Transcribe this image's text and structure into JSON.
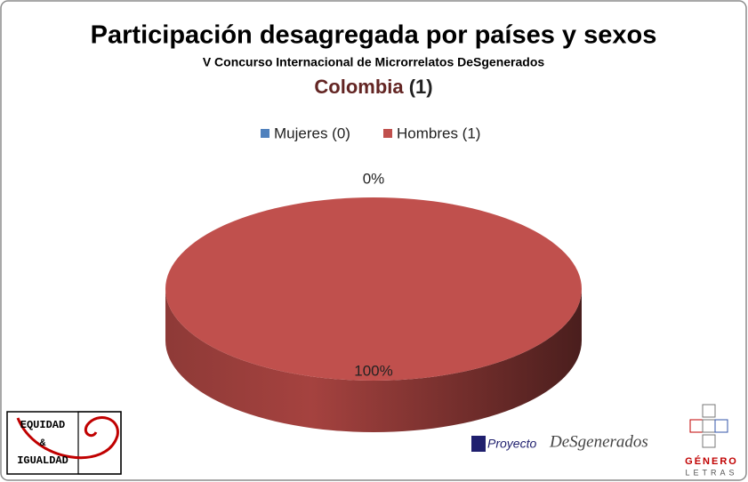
{
  "chart_data": {
    "type": "pie3d",
    "title": "Participación desagregada por países y sexos",
    "subtitle": "V Concurso Internacional de Microrrelatos DeSgenerados",
    "heading": "Colombia",
    "heading_count": "(1)",
    "categories": [
      "Mujeres (0)",
      "Hombres (1)"
    ],
    "values": [
      0,
      100
    ],
    "value_labels": [
      "0%",
      "100%"
    ],
    "colors": [
      "#4f81bd",
      "#c0504d"
    ],
    "legend": "top",
    "annotations": [
      "EQUIDAD",
      "&",
      "IGUALDAD",
      "Proyecto",
      "DeSgenerados",
      "GÉNERO",
      "LETRAS"
    ]
  }
}
